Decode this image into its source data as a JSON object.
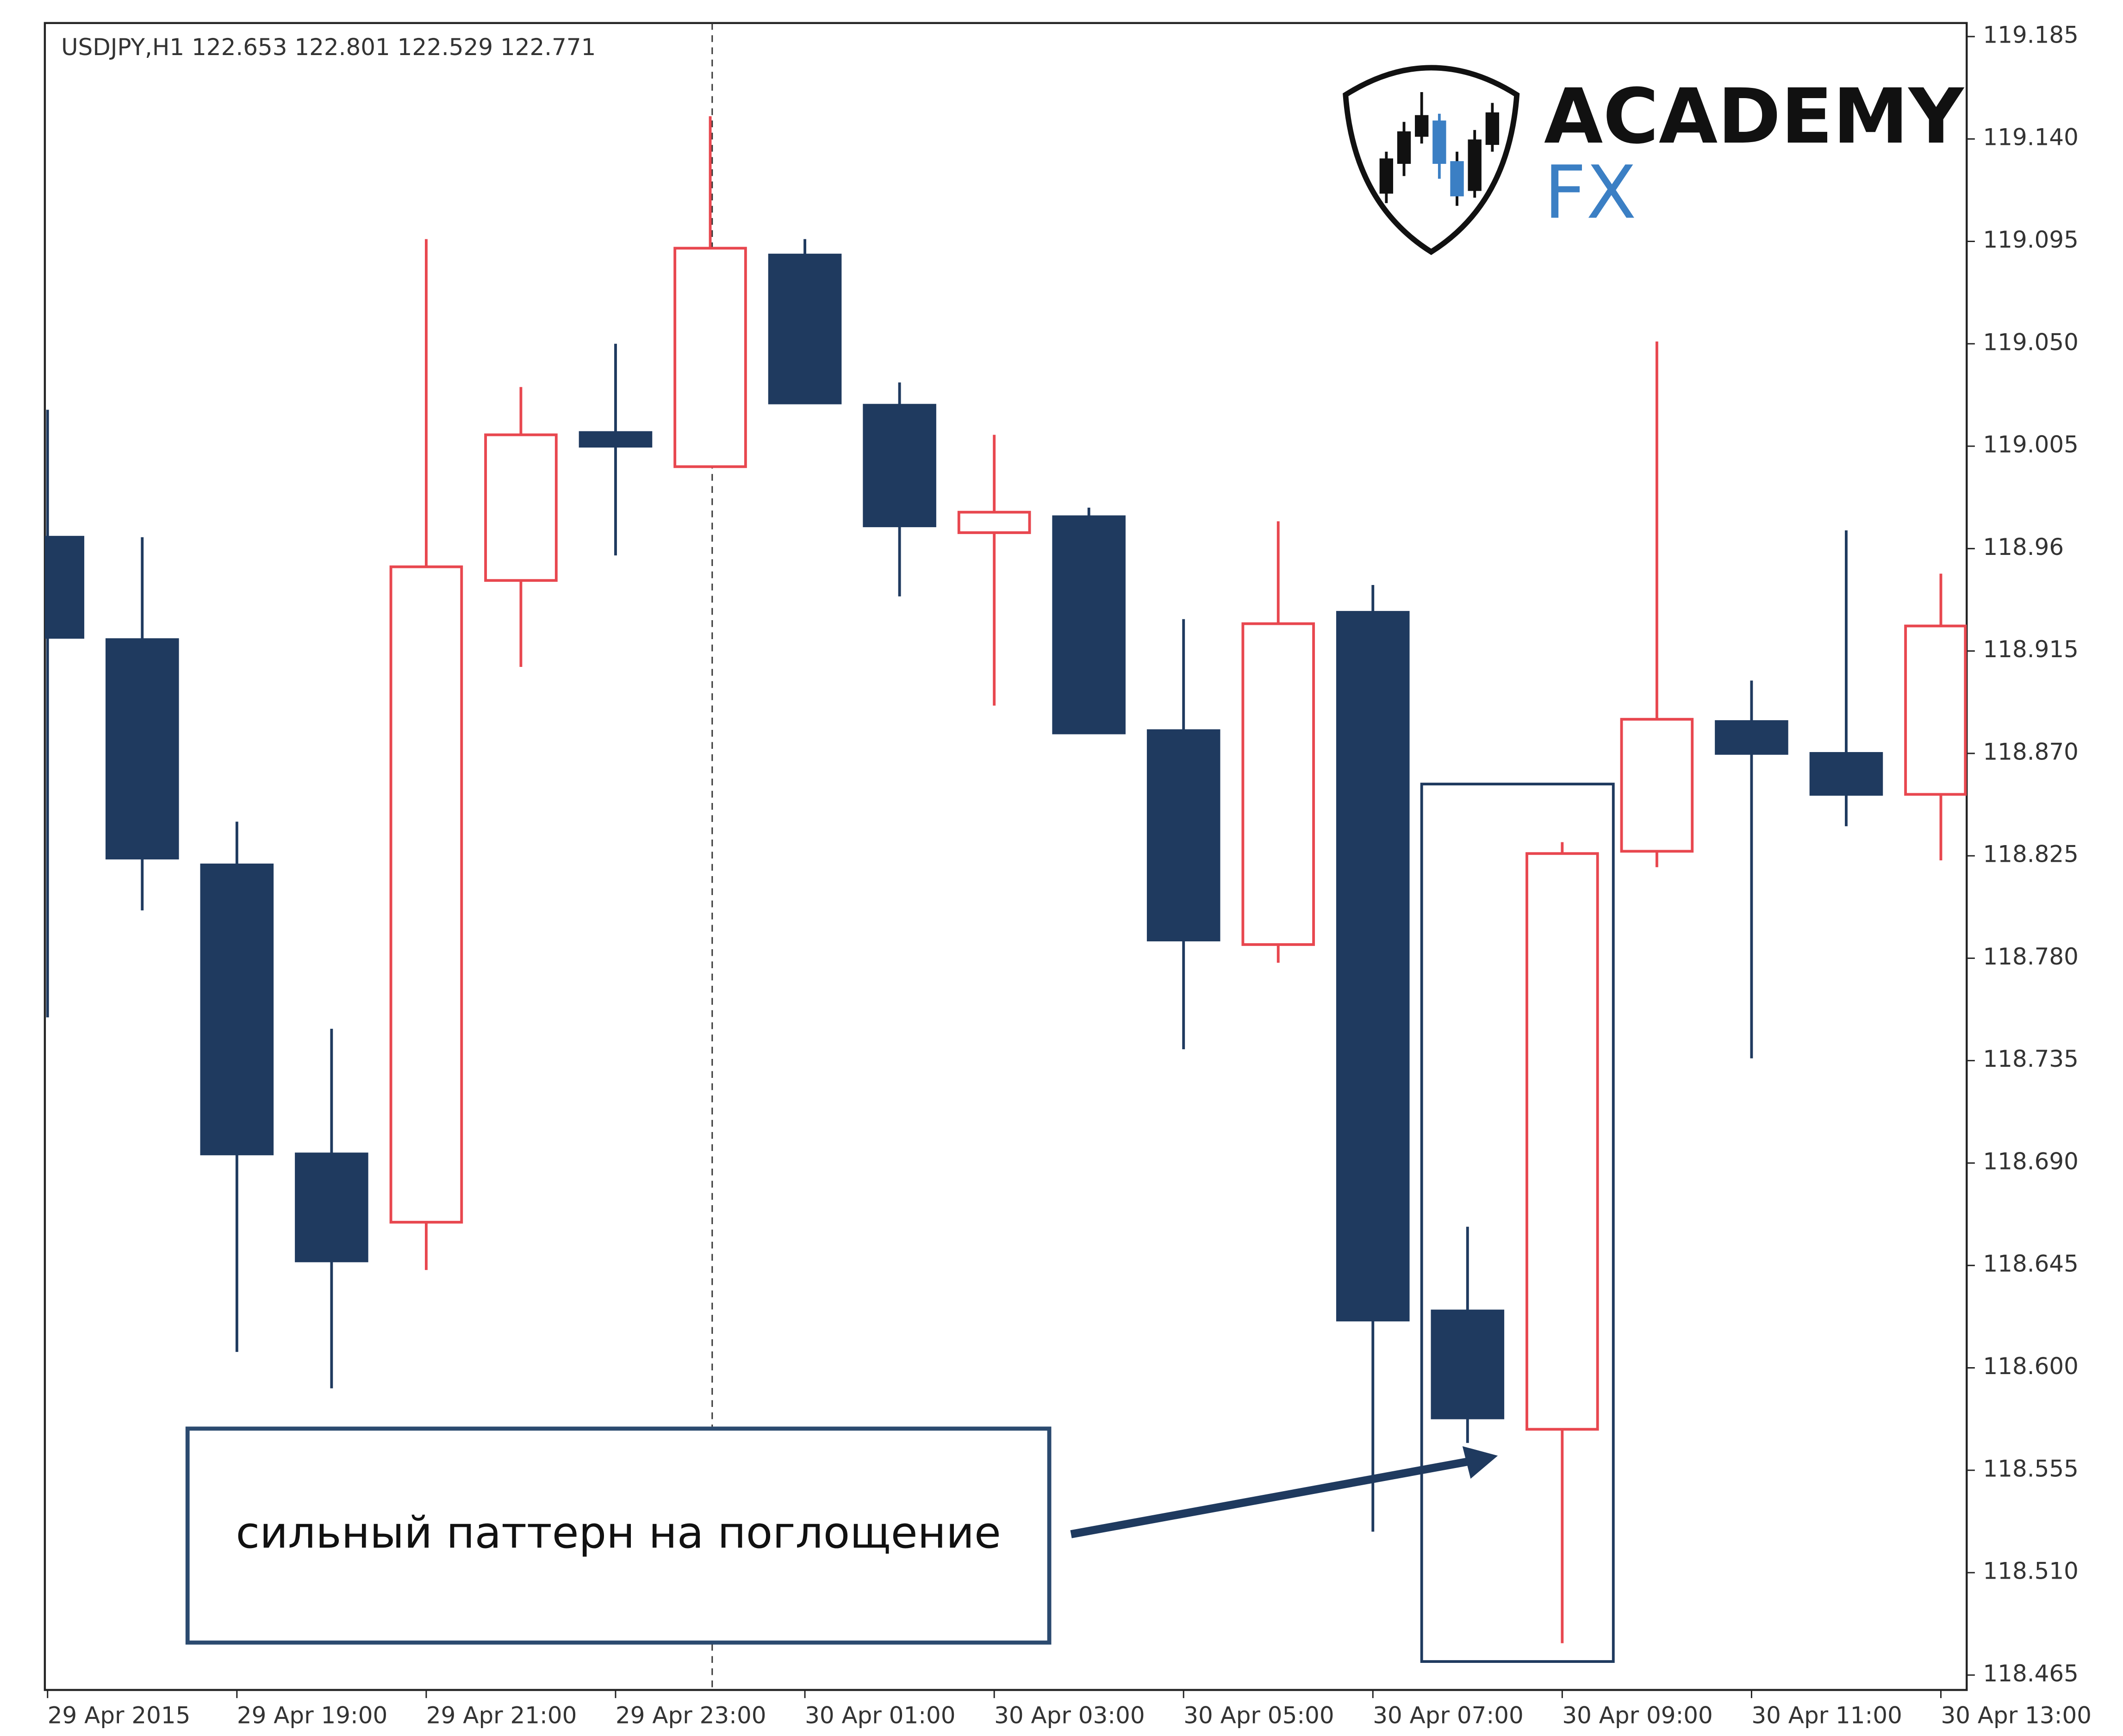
{
  "chart_data": {
    "type": "candlestick",
    "title": "USDJPY,H1  122.653 122.801 122.529 122.771",
    "logo": {
      "line1": "ACADEMY",
      "line2": "FX"
    },
    "annotation": "сильный паттерн на поглощение",
    "categories": [
      "29 Apr 2015",
      null,
      "29 Apr 19:00",
      null,
      "29 Apr 21:00",
      null,
      "29 Apr 23:00",
      null,
      "30 Apr 01:00",
      null,
      "30 Apr 03:00",
      null,
      "30 Apr 05:00",
      null,
      "30 Apr 07:00",
      null,
      "30 Apr 09:00",
      null,
      "30 Apr 11:00",
      null,
      "30 Apr 13:00"
    ],
    "up_color": "#e8474f",
    "down_color": "#1f3a5f",
    "open": [
      118.965,
      118.92,
      118.821,
      118.694,
      118.664,
      118.946,
      119.011,
      118.996,
      119.089,
      119.023,
      118.967,
      118.974,
      118.88,
      118.786,
      118.932,
      118.625,
      118.573,
      118.827,
      118.884,
      118.87,
      118.852
    ],
    "high": [
      119.021,
      118.965,
      118.84,
      118.749,
      119.096,
      119.031,
      119.05,
      119.15,
      119.096,
      119.033,
      119.01,
      118.978,
      118.929,
      118.972,
      118.944,
      118.662,
      118.831,
      119.051,
      118.902,
      118.968,
      118.949
    ],
    "low": [
      118.754,
      118.801,
      118.607,
      118.591,
      118.643,
      118.908,
      118.957,
      118.996,
      119.024,
      118.939,
      118.891,
      118.879,
      118.74,
      118.778,
      118.528,
      118.567,
      118.479,
      118.82,
      118.736,
      118.838,
      118.823
    ],
    "close": [
      118.921,
      118.824,
      118.694,
      118.647,
      118.952,
      119.01,
      119.005,
      119.092,
      119.024,
      118.97,
      118.976,
      118.879,
      118.788,
      118.927,
      118.621,
      118.578,
      118.826,
      118.885,
      118.87,
      118.852,
      118.926
    ],
    "ylim": [
      118.465,
      119.185
    ],
    "yticks": [
      118.465,
      {
        "value": 118.51,
        "label": "118.510"
      },
      118.555,
      {
        "value": 118.6,
        "label": "118.600"
      },
      118.645,
      {
        "value": 118.69,
        "label": "118.690"
      },
      118.735,
      {
        "value": 118.78,
        "label": "118.780"
      },
      118.825,
      {
        "value": 118.87,
        "label": "118.870"
      },
      118.915,
      118.96,
      119.005,
      {
        "value": 119.05,
        "label": "119.050"
      },
      119.095,
      {
        "value": 119.14,
        "label": "119.140"
      },
      119.185
    ],
    "grid": false
  }
}
